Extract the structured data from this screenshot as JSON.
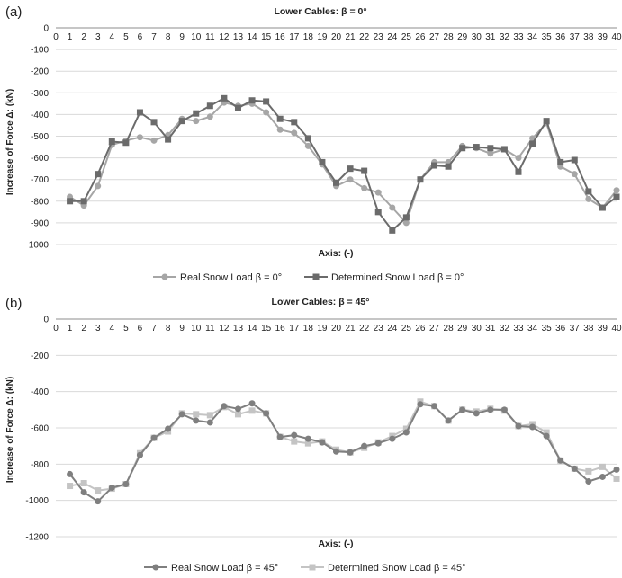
{
  "colors": {
    "real_a": "#a6a6a6",
    "det_a": "#6b6b6b",
    "real_b": "#7f7f7f",
    "det_b": "#c4c4c4",
    "grid": "#d9d9d9",
    "axis": "#8c8c8c"
  },
  "chart_data": [
    {
      "panel": "(a)",
      "type": "line",
      "title": "Lower Cables: β = 0°",
      "xlabel": "Axis: (-)",
      "ylabel": "Increase of Force Δ: (kN)",
      "ylim": [
        -1000,
        0
      ],
      "yticks": [
        0,
        -100,
        -200,
        -300,
        -400,
        -500,
        -600,
        -700,
        -800,
        -900,
        -1000
      ],
      "xticks": [
        0,
        1,
        2,
        3,
        4,
        5,
        6,
        7,
        8,
        9,
        10,
        11,
        12,
        13,
        14,
        15,
        16,
        17,
        18,
        19,
        20,
        21,
        22,
        23,
        24,
        25,
        26,
        27,
        28,
        29,
        30,
        31,
        32,
        33,
        34,
        35,
        36,
        37,
        38,
        39,
        40
      ],
      "x_axis_position": "top",
      "grid": true,
      "legend": "bottom",
      "x": [
        1,
        2,
        3,
        4,
        5,
        6,
        7,
        8,
        9,
        10,
        11,
        12,
        13,
        14,
        15,
        16,
        17,
        18,
        19,
        20,
        21,
        22,
        23,
        24,
        25,
        26,
        27,
        28,
        29,
        30,
        31,
        32,
        33,
        34,
        35,
        36,
        37,
        38,
        39,
        40
      ],
      "series": [
        {
          "name": "Real Snow Load β = 0°",
          "marker": "circle",
          "values": [
            -780,
            -820,
            -730,
            -540,
            -520,
            -505,
            -520,
            -495,
            -420,
            -430,
            -410,
            -345,
            -360,
            -350,
            -390,
            -470,
            -485,
            -545,
            -630,
            -730,
            -700,
            -740,
            -760,
            -830,
            -900,
            -700,
            -620,
            -620,
            -545,
            -555,
            -580,
            -560,
            -600,
            -510,
            -440,
            -640,
            -675,
            -790,
            -830,
            -750
          ]
        },
        {
          "name": "Determined Snow Load β = 0°",
          "marker": "square",
          "values": [
            -800,
            -800,
            -675,
            -525,
            -530,
            -390,
            -435,
            -515,
            -430,
            -395,
            -360,
            -325,
            -370,
            -335,
            -340,
            -420,
            -435,
            -510,
            -620,
            -715,
            -650,
            -660,
            -850,
            -935,
            -875,
            -700,
            -635,
            -640,
            -555,
            -550,
            -555,
            -560,
            -665,
            -535,
            -430,
            -620,
            -610,
            -755,
            -830,
            -780
          ]
        }
      ]
    },
    {
      "panel": "(b)",
      "type": "line",
      "title": "Lower Cables: β = 45°",
      "xlabel": "Axis: (-)",
      "ylabel": "Increase of Force Δ: (kN)",
      "ylim": [
        -1200,
        0
      ],
      "yticks": [
        0,
        -200,
        -400,
        -600,
        -800,
        -1000,
        -1200
      ],
      "xticks": [
        0,
        1,
        2,
        3,
        4,
        5,
        6,
        7,
        8,
        9,
        10,
        11,
        12,
        13,
        14,
        15,
        16,
        17,
        18,
        19,
        20,
        21,
        22,
        23,
        24,
        25,
        26,
        27,
        28,
        29,
        30,
        31,
        32,
        33,
        34,
        35,
        36,
        37,
        38,
        39,
        40
      ],
      "x_axis_position": "top",
      "grid": true,
      "legend": "bottom",
      "x": [
        1,
        2,
        3,
        4,
        5,
        6,
        7,
        8,
        9,
        10,
        11,
        12,
        13,
        14,
        15,
        16,
        17,
        18,
        19,
        20,
        21,
        22,
        23,
        24,
        25,
        26,
        27,
        28,
        29,
        30,
        31,
        32,
        33,
        34,
        35,
        36,
        37,
        38,
        39,
        40
      ],
      "series": [
        {
          "name": "Real Snow Load β = 45°",
          "marker": "circle",
          "values": [
            -855,
            -955,
            -1005,
            -930,
            -910,
            -750,
            -655,
            -605,
            -525,
            -560,
            -570,
            -480,
            -495,
            -465,
            -520,
            -650,
            -640,
            -660,
            -680,
            -730,
            -735,
            -700,
            -685,
            -660,
            -625,
            -470,
            -480,
            -560,
            -500,
            -520,
            -500,
            -500,
            -590,
            -595,
            -645,
            -780,
            -825,
            -895,
            -870,
            -830
          ]
        },
        {
          "name": "Determined Snow Load β = 45°",
          "marker": "square",
          "values": [
            -920,
            -905,
            -945,
            -935,
            -910,
            -740,
            -655,
            -620,
            -520,
            -525,
            -530,
            -485,
            -525,
            -505,
            -520,
            -650,
            -675,
            -685,
            -675,
            -720,
            -735,
            -710,
            -680,
            -645,
            -605,
            -455,
            -480,
            -560,
            -500,
            -510,
            -495,
            -505,
            -590,
            -580,
            -625,
            -780,
            -825,
            -840,
            -815,
            -880
          ]
        }
      ]
    }
  ]
}
